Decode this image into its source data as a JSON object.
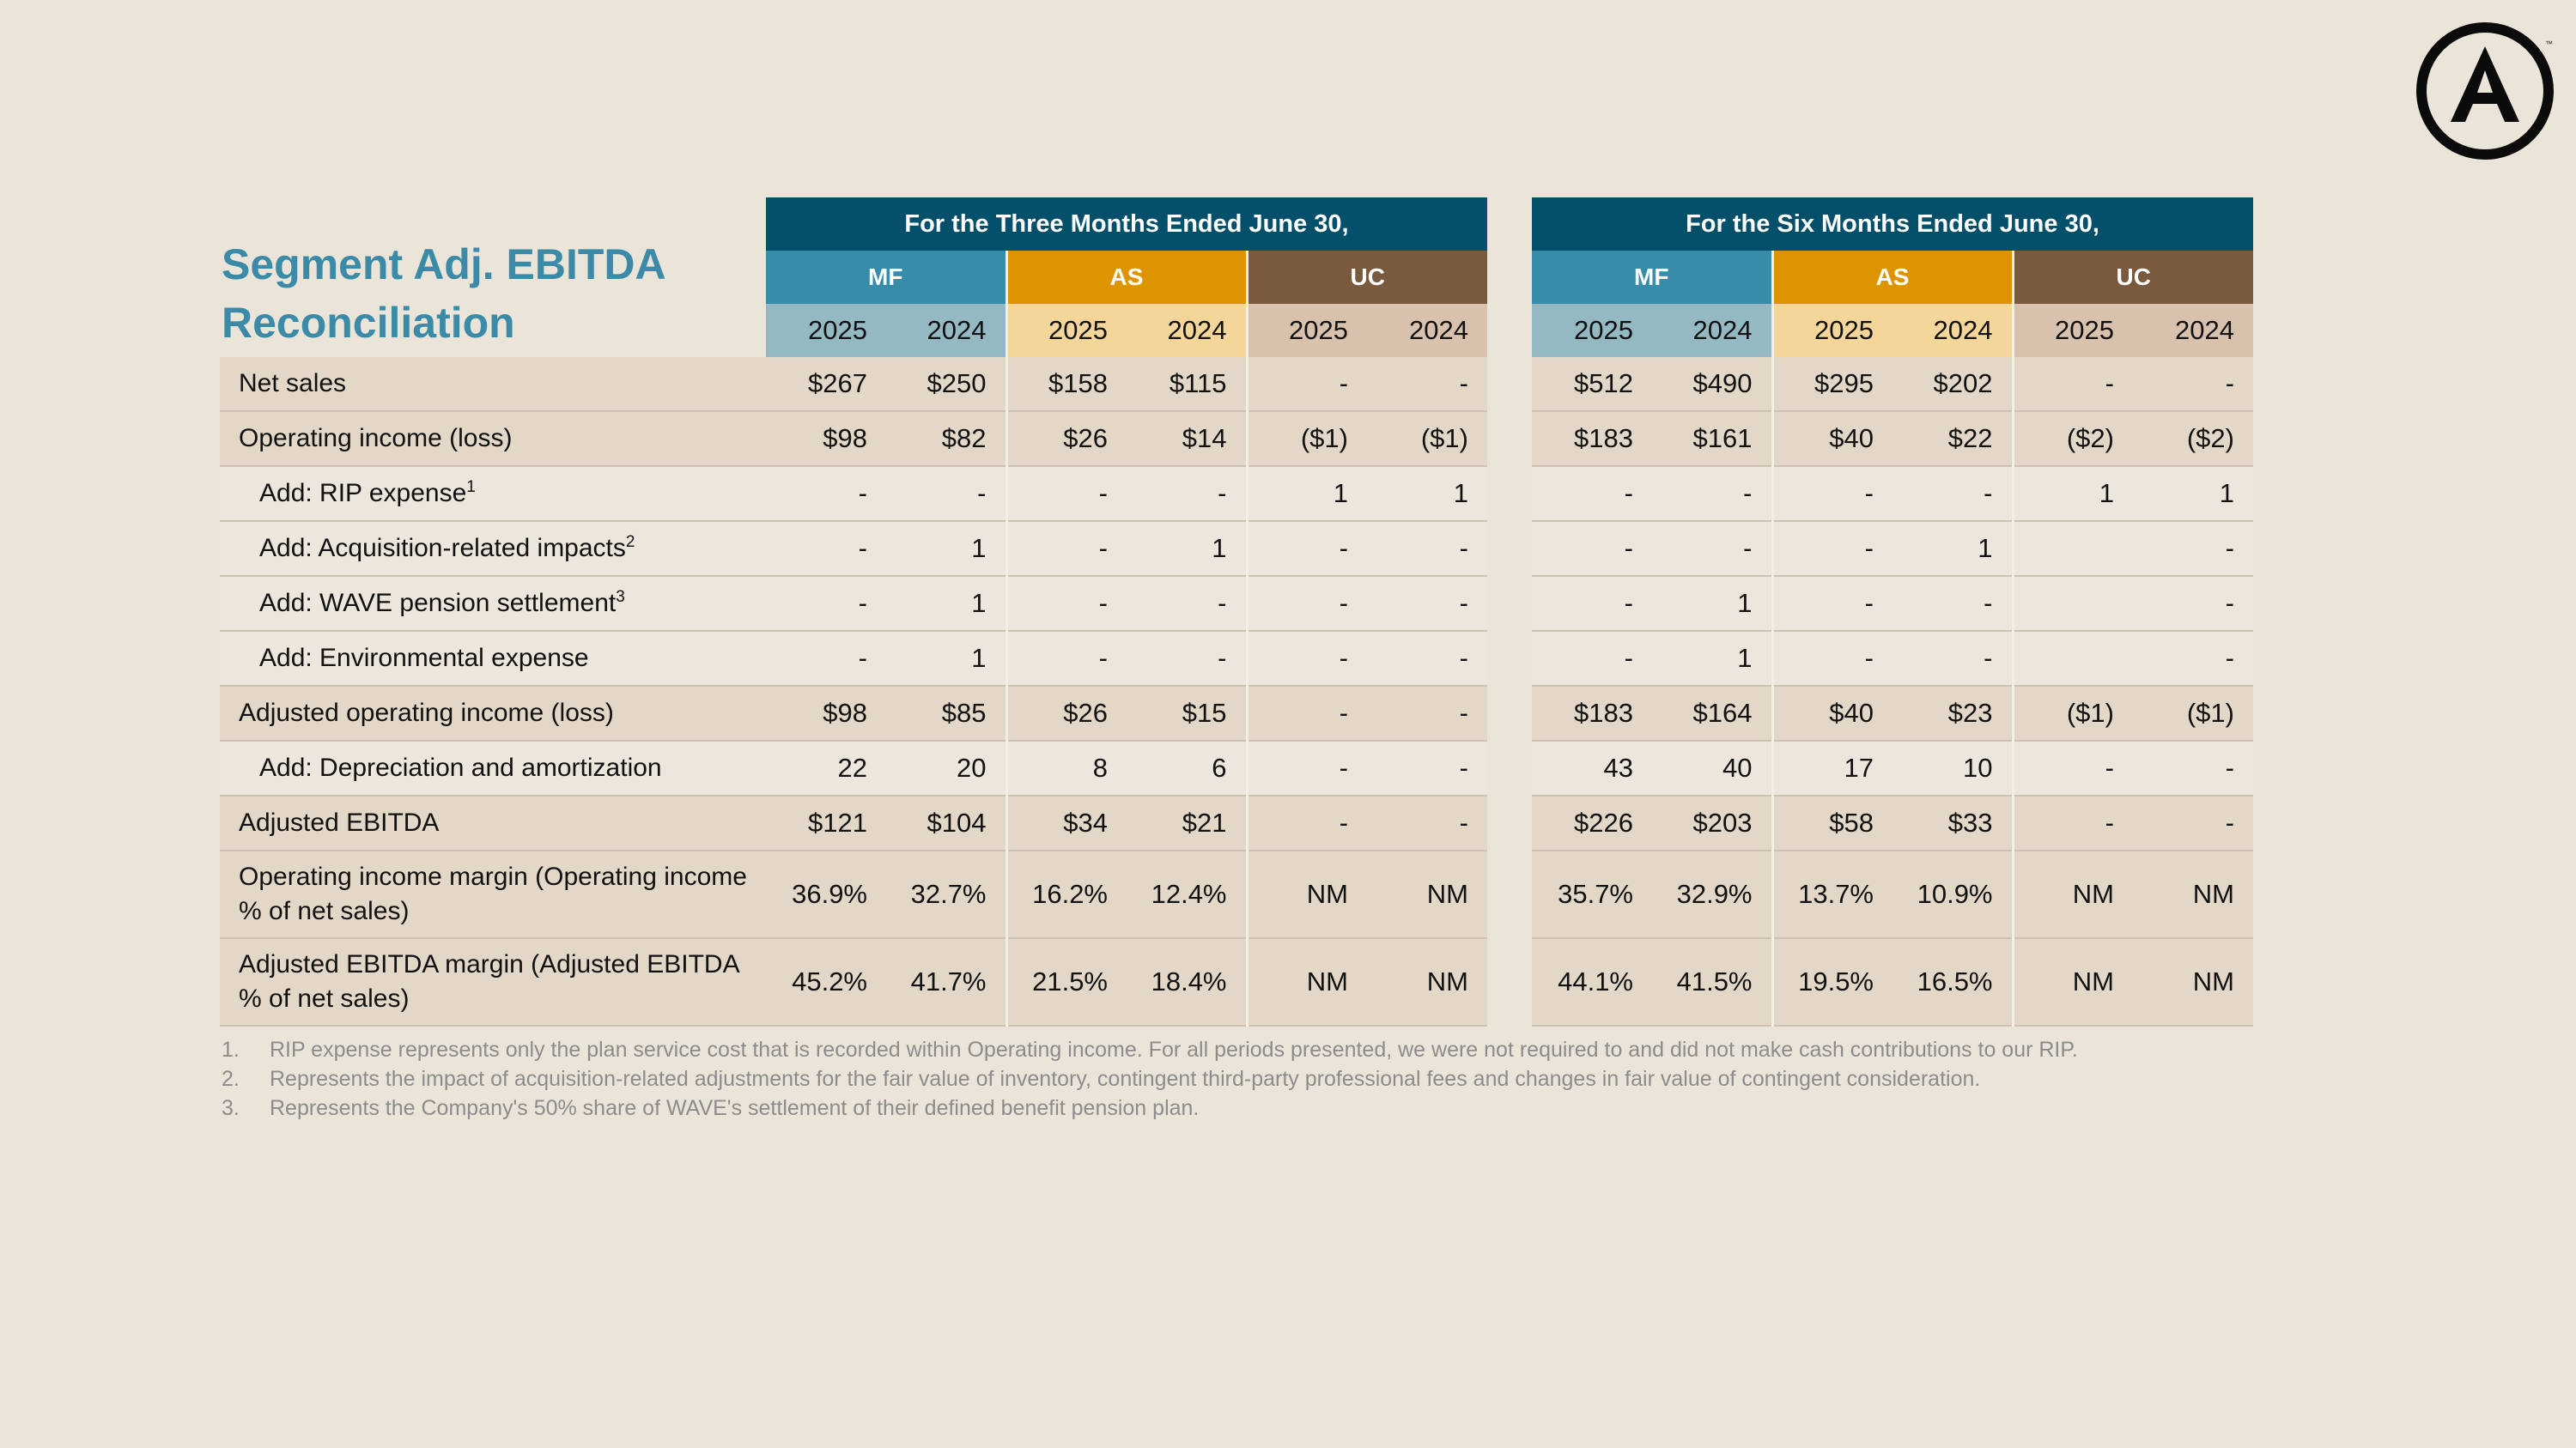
{
  "title": "Segment Adj. EBITDA Reconciliation",
  "periods": [
    "For the Three Months Ended June 30,",
    "For the Six Months Ended June 30,"
  ],
  "segments": [
    "MF",
    "AS",
    "UC"
  ],
  "years": [
    "2025",
    "2024"
  ],
  "rows": [
    {
      "label": "Net sales",
      "sup": "",
      "indent": false,
      "style": "shade",
      "values": [
        "$267",
        "$250",
        "$158",
        "$115",
        "-",
        "-",
        "$512",
        "$490",
        "$295",
        "$202",
        "-",
        "-"
      ]
    },
    {
      "label": "Operating income (loss)",
      "sup": "",
      "indent": false,
      "style": "shade",
      "values": [
        "$98",
        "$82",
        "$26",
        "$14",
        "($1)",
        "($1)",
        "$183",
        "$161",
        "$40",
        "$22",
        "($2)",
        "($2)"
      ]
    },
    {
      "label": "Add: RIP expense",
      "sup": "1",
      "indent": true,
      "style": "light",
      "values": [
        "-",
        "-",
        "-",
        "-",
        "1",
        "1",
        "-",
        "-",
        "-",
        "-",
        "1",
        "1"
      ]
    },
    {
      "label": "Add: Acquisition-related impacts",
      "sup": "2",
      "indent": true,
      "style": "light",
      "values": [
        "-",
        "1",
        "-",
        "1",
        "-",
        "-",
        "-",
        "-",
        "-",
        "1",
        "",
        "-"
      ]
    },
    {
      "label": "Add: WAVE pension settlement",
      "sup": "3",
      "indent": true,
      "style": "light",
      "values": [
        "-",
        "1",
        "-",
        "-",
        "-",
        "-",
        "-",
        "1",
        "-",
        "-",
        "",
        "-"
      ]
    },
    {
      "label": "Add: Environmental expense",
      "sup": "",
      "indent": true,
      "style": "light",
      "values": [
        "-",
        "1",
        "-",
        "-",
        "-",
        "-",
        "-",
        "1",
        "-",
        "-",
        "",
        "-"
      ]
    },
    {
      "label": "Adjusted operating income (loss)",
      "sup": "",
      "indent": false,
      "style": "shade",
      "values": [
        "$98",
        "$85",
        "$26",
        "$15",
        "-",
        "-",
        "$183",
        "$164",
        "$40",
        "$23",
        "($1)",
        "($1)"
      ]
    },
    {
      "label": "Add: Depreciation and amortization",
      "sup": "",
      "indent": true,
      "style": "light",
      "values": [
        "22",
        "20",
        "8",
        "6",
        "-",
        "-",
        "43",
        "40",
        "17",
        "10",
        "-",
        "-"
      ]
    },
    {
      "label": "Adjusted EBITDA",
      "sup": "",
      "indent": false,
      "style": "shade",
      "values": [
        "$121",
        "$104",
        "$34",
        "$21",
        "-",
        "-",
        "$226",
        "$203",
        "$58",
        "$33",
        "-",
        "-"
      ]
    },
    {
      "label": "Operating income margin (Operating income % of net sales)",
      "sup": "",
      "indent": false,
      "style": "shade",
      "tall": true,
      "values": [
        "36.9%",
        "32.7%",
        "16.2%",
        "12.4%",
        "NM",
        "NM",
        "35.7%",
        "32.9%",
        "13.7%",
        "10.9%",
        "NM",
        "NM"
      ]
    },
    {
      "label": "Adjusted EBITDA margin (Adjusted EBITDA % of net sales)",
      "sup": "",
      "indent": false,
      "style": "shade",
      "tall": true,
      "values": [
        "45.2%",
        "41.7%",
        "21.5%",
        "18.4%",
        "NM",
        "NM",
        "44.1%",
        "41.5%",
        "19.5%",
        "16.5%",
        "NM",
        "NM"
      ]
    }
  ],
  "footnotes": [
    {
      "num": "1.",
      "text": "RIP expense represents only the plan service cost that is recorded within Operating income. For all periods presented, we were not required to and did not make cash contributions to our RIP."
    },
    {
      "num": "2.",
      "text": "Represents the impact of acquisition-related adjustments for the fair value of inventory, contingent third-party professional fees and changes in fair value of contingent consideration."
    },
    {
      "num": "3.",
      "text": "Represents the Company's 50% share of WAVE's settlement of their defined benefit pension plan."
    }
  ],
  "logo": {
    "letter": "A",
    "trademark": "™"
  },
  "colors": {
    "navy": "#04506a",
    "mf": "#368ca9",
    "as": "#dd9400",
    "uc": "#7a5a3e",
    "title": "#3a8aa8"
  }
}
